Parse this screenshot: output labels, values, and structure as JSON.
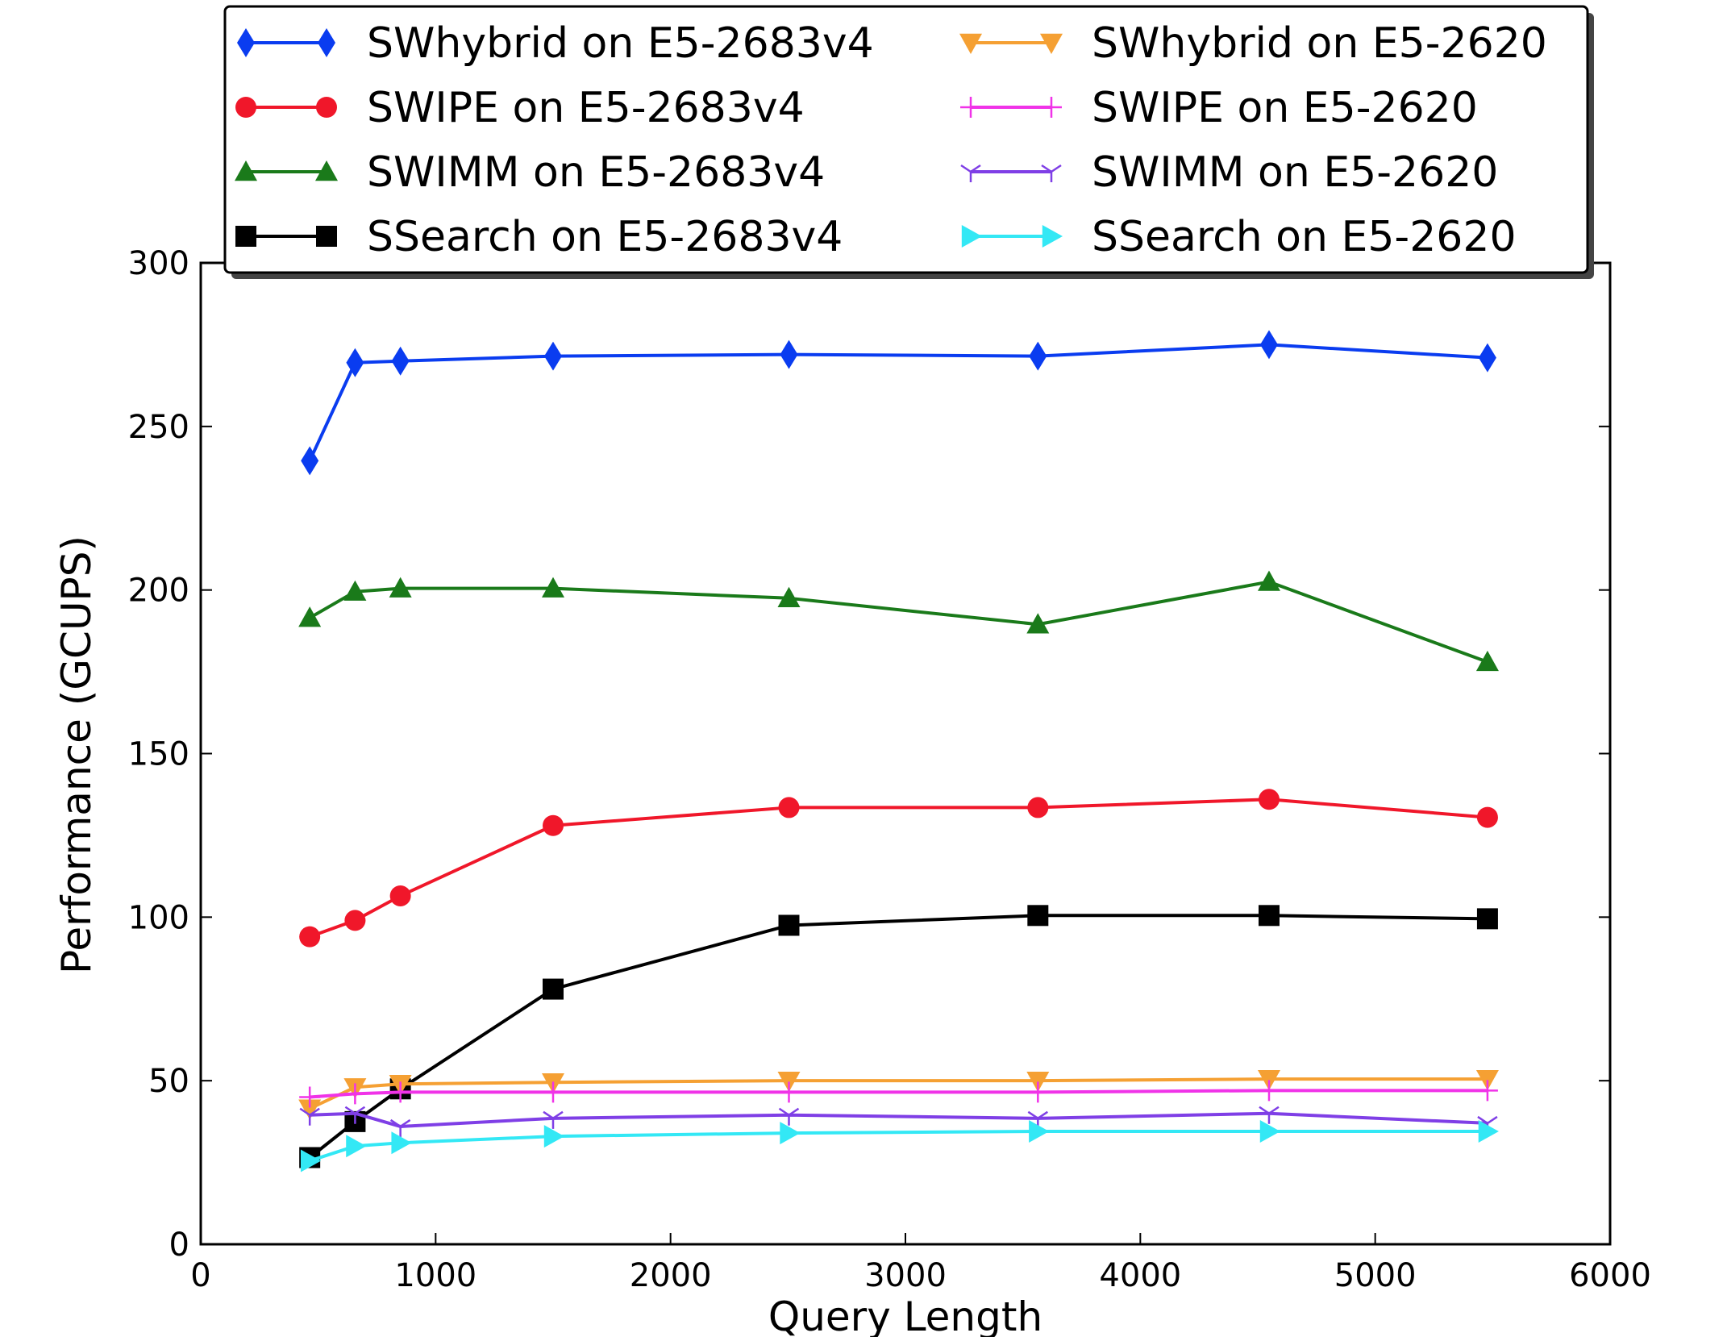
{
  "chart_data": {
    "type": "line",
    "title": "",
    "xlabel": "Query Length",
    "ylabel": "Performance (GCUPS)",
    "xlim": [
      0,
      6000
    ],
    "ylim": [
      0,
      300
    ],
    "xticks": [
      0,
      1000,
      2000,
      3000,
      4000,
      5000,
      6000
    ],
    "yticks": [
      0,
      50,
      100,
      150,
      200,
      250,
      300
    ],
    "grid": false,
    "legend": {
      "placement": "top-center",
      "columns": 2
    },
    "x": [
      464,
      657,
      850,
      1500,
      2504,
      3564,
      4548,
      5478
    ],
    "series": [
      {
        "name": "SWhybrid on E5-2683v4",
        "color": "#0a3cf0",
        "marker": "diamond",
        "values": [
          239.5,
          269.5,
          270,
          271.5,
          272,
          271.5,
          275,
          271
        ]
      },
      {
        "name": "SWIPE on E5-2683v4",
        "color": "#f0172a",
        "marker": "circle",
        "values": [
          94,
          99,
          106.5,
          128,
          133.5,
          133.5,
          136,
          130.5
        ]
      },
      {
        "name": "SWIMM on E5-2683v4",
        "color": "#1a7a1a",
        "marker": "triangle-up",
        "values": [
          191.5,
          199.5,
          200.5,
          200.5,
          197.5,
          189.5,
          202.5,
          178
        ]
      },
      {
        "name": "SSearch on E5-2683v4",
        "color": "#000000",
        "marker": "square",
        "values": [
          26.5,
          37.5,
          47.5,
          78,
          97.5,
          100.5,
          100.5,
          99.5
        ]
      },
      {
        "name": "SWhybrid on E5-2620",
        "color": "#f5a033",
        "marker": "triangle-down",
        "values": [
          41.5,
          48,
          49,
          49.5,
          50,
          50,
          50.5,
          50.5
        ]
      },
      {
        "name": "SWIPE on E5-2620",
        "color": "#f033e8",
        "marker": "plus",
        "values": [
          45,
          46,
          46.5,
          46.5,
          46.5,
          46.5,
          47,
          47
        ]
      },
      {
        "name": "SWIMM on E5-2620",
        "color": "#7f3fe6",
        "marker": "tri-down",
        "values": [
          39.5,
          40,
          36,
          38.5,
          39.5,
          38.5,
          40,
          37
        ]
      },
      {
        "name": "SSearch on E5-2620",
        "color": "#33e8f5",
        "marker": "triangle-right",
        "values": [
          25.5,
          30,
          31,
          33,
          34,
          34.5,
          34.5,
          34.5
        ]
      }
    ]
  }
}
